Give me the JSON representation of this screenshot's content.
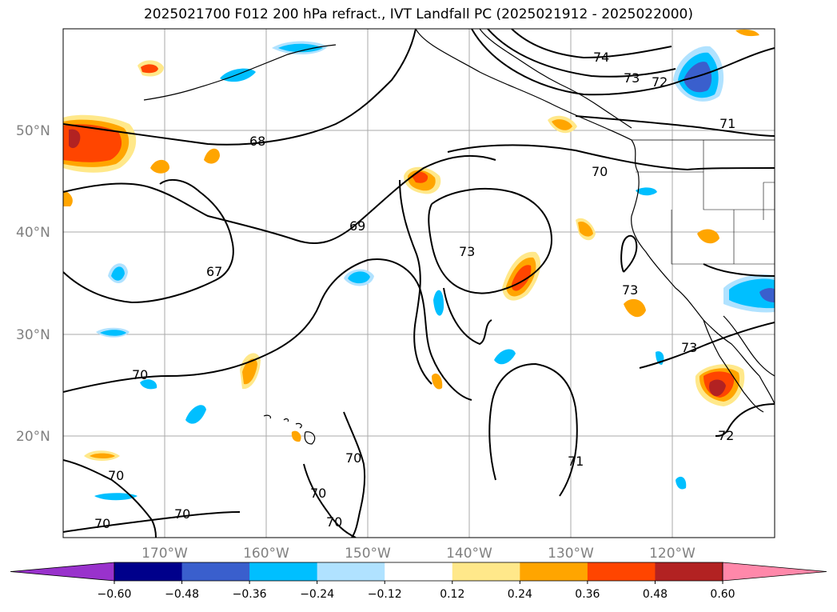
{
  "title": "2025021700 F012 200 hPa refract., IVT Landfall PC (2025021912 - 2025022000)",
  "lat_labels": [
    "50°N",
    "40°N",
    "30°N",
    "20°N"
  ],
  "lon_labels": [
    "170°W",
    "160°W",
    "150°W",
    "140°W",
    "130°W",
    "120°W"
  ],
  "contour_labels": [
    "74",
    "73",
    "72",
    "71",
    "70",
    "68",
    "69",
    "67",
    "73",
    "73",
    "70",
    "73",
    "72",
    "70",
    "70",
    "70",
    "70",
    "71",
    "70",
    "70"
  ],
  "colorbar": {
    "ticks": [
      "−0.60",
      "−0.48",
      "−0.36",
      "−0.24",
      "−0.12",
      "0.12",
      "0.24",
      "0.36",
      "0.48",
      "0.60"
    ],
    "colors": [
      "#9932cc",
      "#00008b",
      "#3a5fcd",
      "#00bfff",
      "#b0e2ff",
      "#ffffff",
      "#ffe88a",
      "#ffa500",
      "#ff4500",
      "#b22222",
      "#ff88aa"
    ]
  }
}
